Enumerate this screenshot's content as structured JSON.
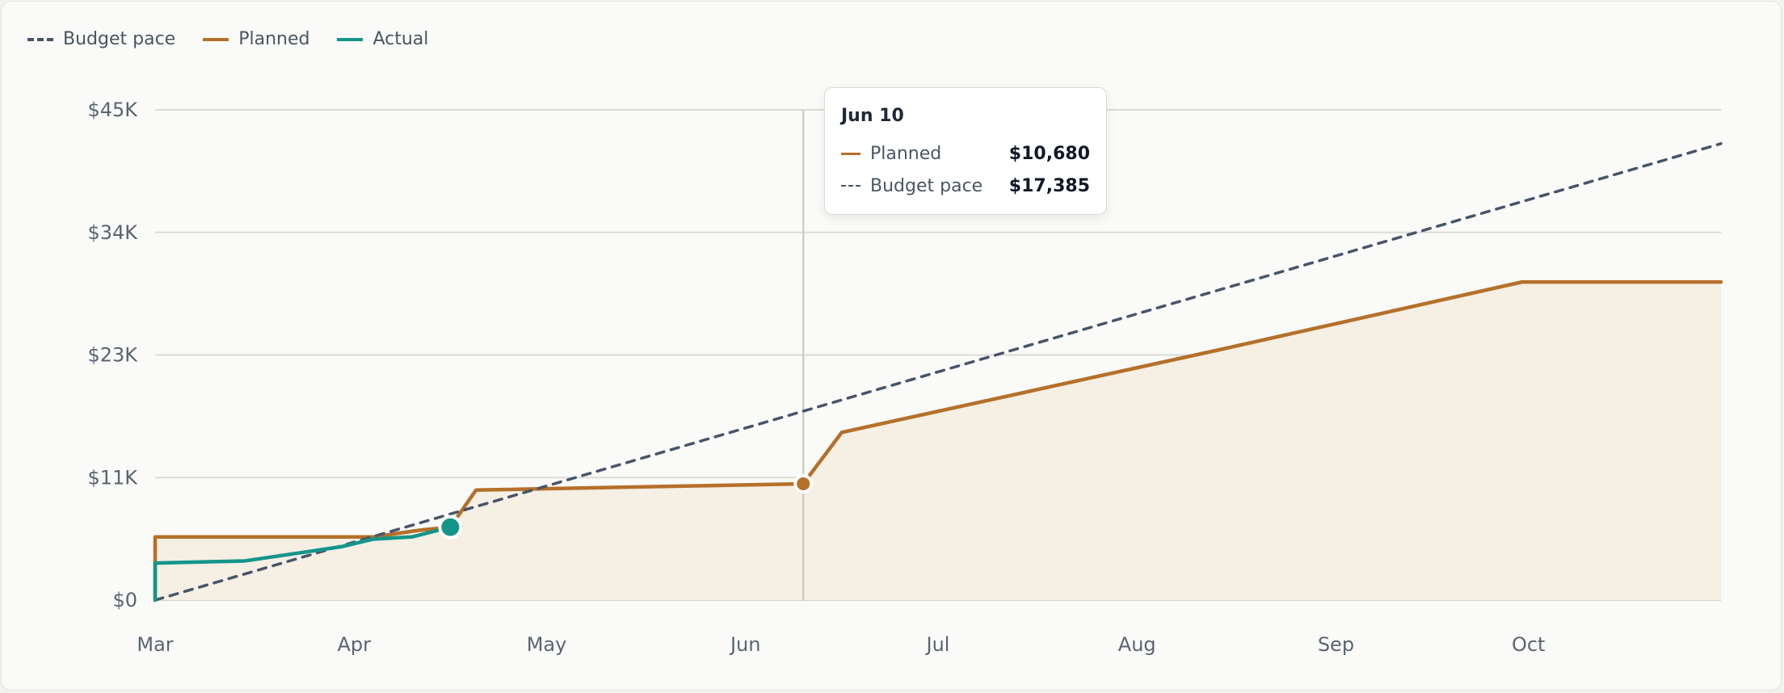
{
  "legend": {
    "items": [
      {
        "label": "Budget pace",
        "color": "#475569",
        "style": "dashed"
      },
      {
        "label": "Planned",
        "color": "#b5702a",
        "style": "solid"
      },
      {
        "label": "Actual",
        "color": "#14958a",
        "style": "solid"
      }
    ]
  },
  "tooltip": {
    "title": "Jun 10",
    "rows": [
      {
        "label": "Planned",
        "value": "$10,680",
        "color": "#b5702a",
        "style": "solid"
      },
      {
        "label": "Budget pace",
        "value": "$17,385",
        "color": "#475569",
        "style": "dashed"
      }
    ]
  },
  "chart_data": {
    "type": "line",
    "title": "",
    "xlabel": "",
    "ylabel": "",
    "x_axis": {
      "type": "date",
      "range": [
        "2025-03-01",
        "2025-10-31"
      ],
      "ticks": [
        {
          "date": "2025-03-01",
          "label": "Mar"
        },
        {
          "date": "2025-04-01",
          "label": "Apr"
        },
        {
          "date": "2025-05-01",
          "label": "May"
        },
        {
          "date": "2025-06-01",
          "label": "Jun"
        },
        {
          "date": "2025-07-01",
          "label": "Jul"
        },
        {
          "date": "2025-08-01",
          "label": "Aug"
        },
        {
          "date": "2025-09-01",
          "label": "Sep"
        },
        {
          "date": "2025-10-01",
          "label": "Oct"
        }
      ]
    },
    "y_axis": {
      "range": [
        0,
        45000
      ],
      "ticks": [
        {
          "value": 0,
          "label": "$0"
        },
        {
          "value": 11250,
          "label": "$11K"
        },
        {
          "value": 22500,
          "label": "$23K"
        },
        {
          "value": 33750,
          "label": "$34K"
        },
        {
          "value": 45000,
          "label": "$45K"
        }
      ]
    },
    "grid": true,
    "legend_position": "top-left",
    "series": [
      {
        "name": "Budget pace",
        "color": "#475569",
        "style": "dashed",
        "points": [
          [
            "2025-03-01",
            0
          ],
          [
            "2025-10-31",
            41900
          ]
        ]
      },
      {
        "name": "Planned",
        "color": "#b5702a",
        "style": "solid",
        "fill": "#f5efe4",
        "points": [
          [
            "2025-03-01",
            0
          ],
          [
            "2025-03-01",
            5800
          ],
          [
            "2025-04-04",
            5800
          ],
          [
            "2025-04-11",
            6400
          ],
          [
            "2025-04-16",
            6700
          ],
          [
            "2025-04-20",
            10100
          ],
          [
            "2025-06-10",
            10680
          ],
          [
            "2025-06-16",
            15400
          ],
          [
            "2025-08-14",
            23000
          ],
          [
            "2025-09-30",
            29200
          ],
          [
            "2025-10-31",
            29200
          ]
        ]
      },
      {
        "name": "Actual",
        "color": "#14958a",
        "style": "solid",
        "points": [
          [
            "2025-03-01",
            0
          ],
          [
            "2025-03-01",
            3400
          ],
          [
            "2025-03-15",
            3600
          ],
          [
            "2025-03-30",
            4900
          ],
          [
            "2025-04-04",
            5600
          ],
          [
            "2025-04-10",
            5800
          ],
          [
            "2025-04-16",
            6700
          ]
        ]
      }
    ],
    "highlight": {
      "date": "2025-06-10",
      "planned": 10680,
      "budget_pace": 17385
    }
  }
}
